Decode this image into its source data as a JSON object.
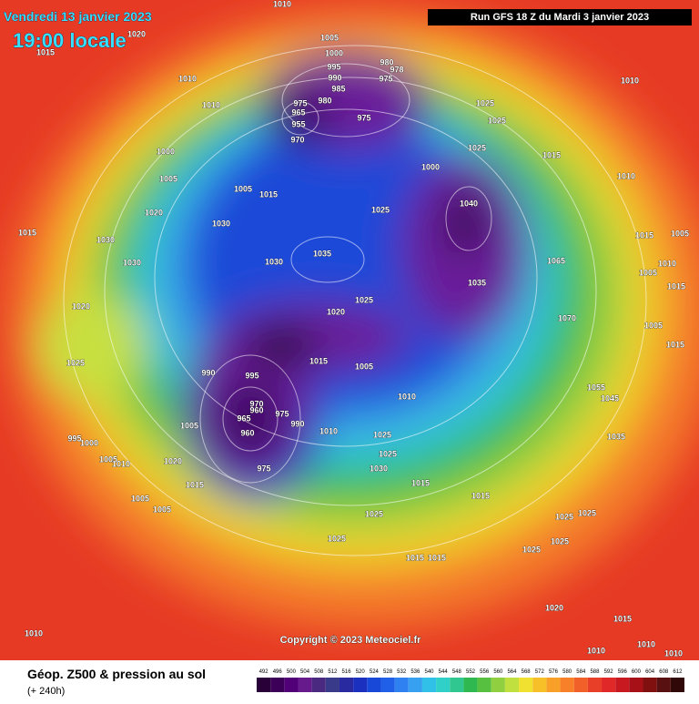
{
  "header": {
    "date": "Vendredi 13 janvier 2023",
    "time": "19:00 locale",
    "run": "Run GFS 18 Z du Mardi 3 janvier 2023"
  },
  "copyright": "Copyright © 2023 Meteociel.fr",
  "footer": {
    "title": "Géop. Z500 & pression au sol",
    "lead": "(+ 240h)"
  },
  "legend": {
    "values": [
      492,
      496,
      500,
      504,
      508,
      512,
      516,
      520,
      524,
      528,
      532,
      536,
      540,
      544,
      548,
      552,
      556,
      560,
      564,
      568,
      572,
      576,
      580,
      584,
      588,
      592,
      596,
      600,
      604,
      608,
      612
    ],
    "colors": [
      "#2a0038",
      "#3c0058",
      "#520078",
      "#661a8c",
      "#4a2a80",
      "#3a3a8a",
      "#2a2aa0",
      "#1c30c0",
      "#1848d8",
      "#2060e8",
      "#2f80f0",
      "#38a0f0",
      "#30c0e8",
      "#30d0c8",
      "#30c890",
      "#30b850",
      "#58c040",
      "#90d040",
      "#c0e040",
      "#f0e030",
      "#f8c028",
      "#f8a028",
      "#f88028",
      "#f06028",
      "#e84028",
      "#e02828",
      "#c81820",
      "#a81018",
      "#801010",
      "#581010",
      "#300808"
    ]
  },
  "isobar_labels": [
    1010,
    1020,
    1015,
    1005,
    1000,
    980,
    995,
    978,
    975,
    990,
    985,
    1010,
    1010,
    1010,
    975,
    980,
    965,
    975,
    955,
    970,
    1025,
    1025,
    1000,
    1025,
    1015,
    1010,
    1000,
    1005,
    1005,
    1015,
    1040,
    1020,
    1025,
    1030,
    1015,
    1030,
    1015,
    1005,
    1035,
    1030,
    1030,
    1065,
    1010,
    1005,
    1035,
    1015,
    1025,
    1020,
    1020,
    1070,
    1005,
    1015,
    990,
    995,
    1015,
    1005,
    1025,
    1010,
    1055,
    1045,
    970,
    960,
    965,
    1005,
    975,
    990,
    1010,
    960,
    1035,
    1025,
    995,
    1000,
    1025,
    1005,
    1010,
    1020,
    1030,
    975,
    1015,
    1015,
    1015,
    1005,
    1005,
    1025,
    1025,
    1025,
    1025,
    1025,
    1025,
    1015,
    1015,
    1020,
    1010,
    1015,
    1010,
    1010,
    1010
  ]
}
